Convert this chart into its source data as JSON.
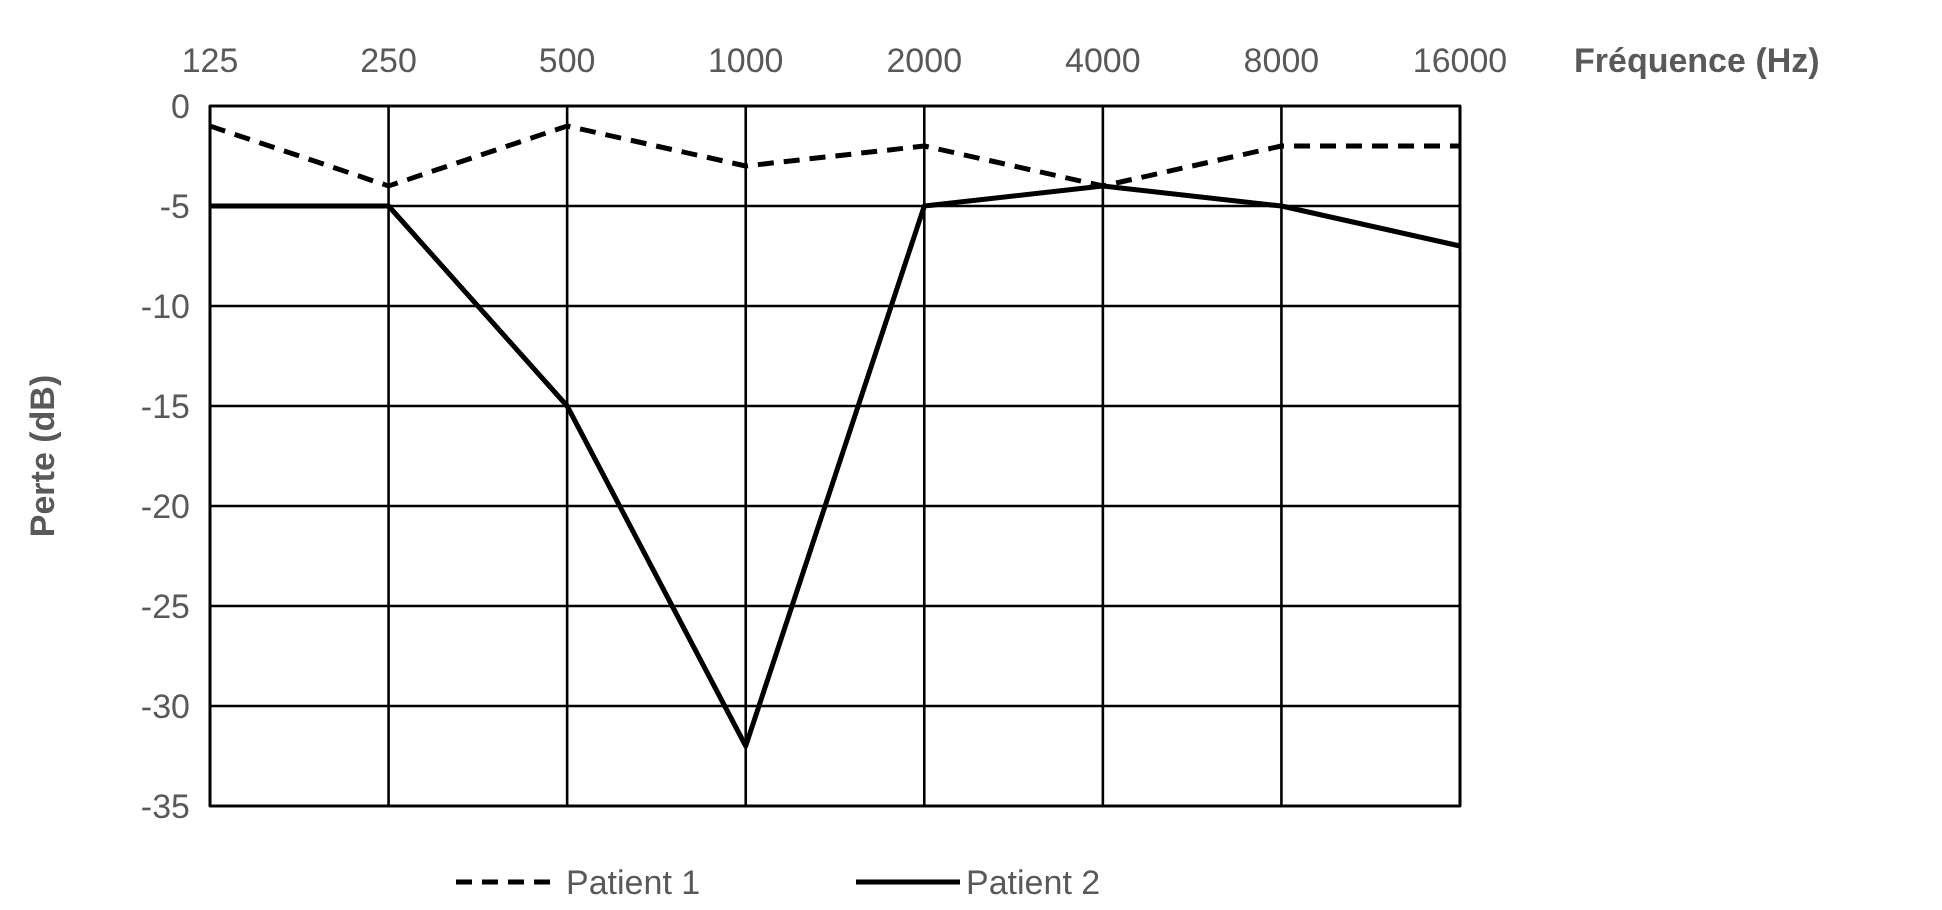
{
  "chart_data": {
    "type": "line",
    "xlabel": "Fréquence (Hz)",
    "ylabel": "Perte (dB)",
    "categories": [
      "125",
      "250",
      "500",
      "1000",
      "2000",
      "4000",
      "8000",
      "16000"
    ],
    "series": [
      {
        "name": "Patient 1",
        "color": "#000000",
        "line_style": "dashed",
        "values": [
          -1,
          -4,
          -1,
          -3,
          -2,
          -4,
          -2,
          -2
        ]
      },
      {
        "name": "Patient 2",
        "color": "#000000",
        "line_style": "solid",
        "values": [
          -5,
          -5,
          -15,
          -32,
          -5,
          -4,
          -5,
          -7
        ]
      }
    ],
    "ylim": [
      -35,
      0
    ],
    "yticks": [
      0,
      -5,
      -10,
      -15,
      -20,
      -25,
      -30,
      -35
    ],
    "grid": true,
    "legend": "bottom",
    "marker": "none"
  }
}
